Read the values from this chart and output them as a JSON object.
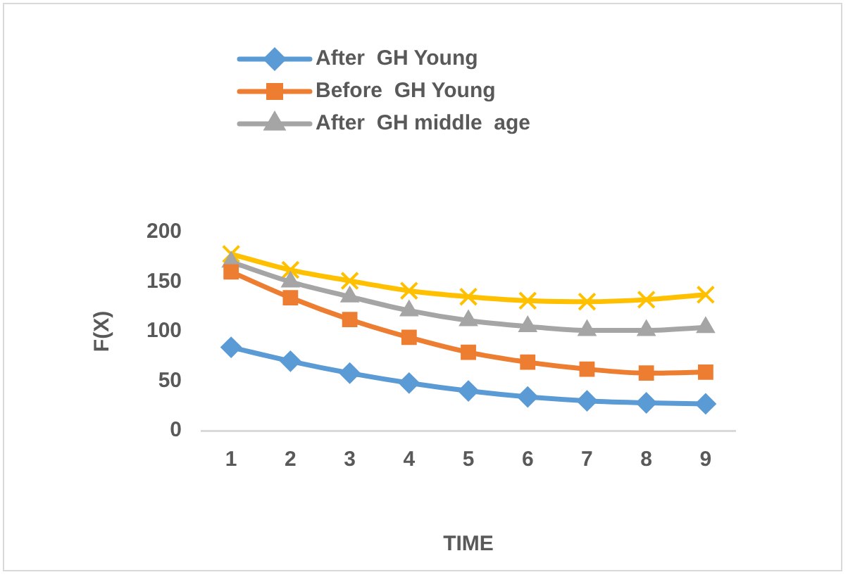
{
  "chart_data": {
    "type": "line",
    "xlabel": "TIME",
    "ylabel": "F(X)",
    "categories": [
      "1",
      "2",
      "3",
      "4",
      "5",
      "6",
      "7",
      "8",
      "9"
    ],
    "ylim": [
      0,
      200
    ],
    "yticks": [
      0,
      50,
      100,
      150,
      200
    ],
    "grid": false,
    "legend": "top",
    "line_style": "solid",
    "series": [
      {
        "name": "After  GH Young",
        "color": "#5b9bd5",
        "marker": "diamond",
        "values": [
          84,
          70,
          58,
          48,
          40,
          34,
          30,
          28,
          27
        ]
      },
      {
        "name": "Before  GH Young",
        "color": "#ed7d31",
        "marker": "square",
        "values": [
          160,
          134,
          112,
          94,
          79,
          69,
          62,
          58,
          59
        ]
      },
      {
        "name": "After  GH middle  age",
        "color": "#a5a5a5",
        "marker": "triangle",
        "values": [
          170,
          150,
          135,
          121,
          111,
          105,
          101,
          101,
          104
        ]
      },
      {
        "color": "#ffc000",
        "marker": "cross",
        "values": [
          178,
          162,
          151,
          141,
          135,
          131,
          130,
          132,
          137
        ]
      }
    ]
  }
}
